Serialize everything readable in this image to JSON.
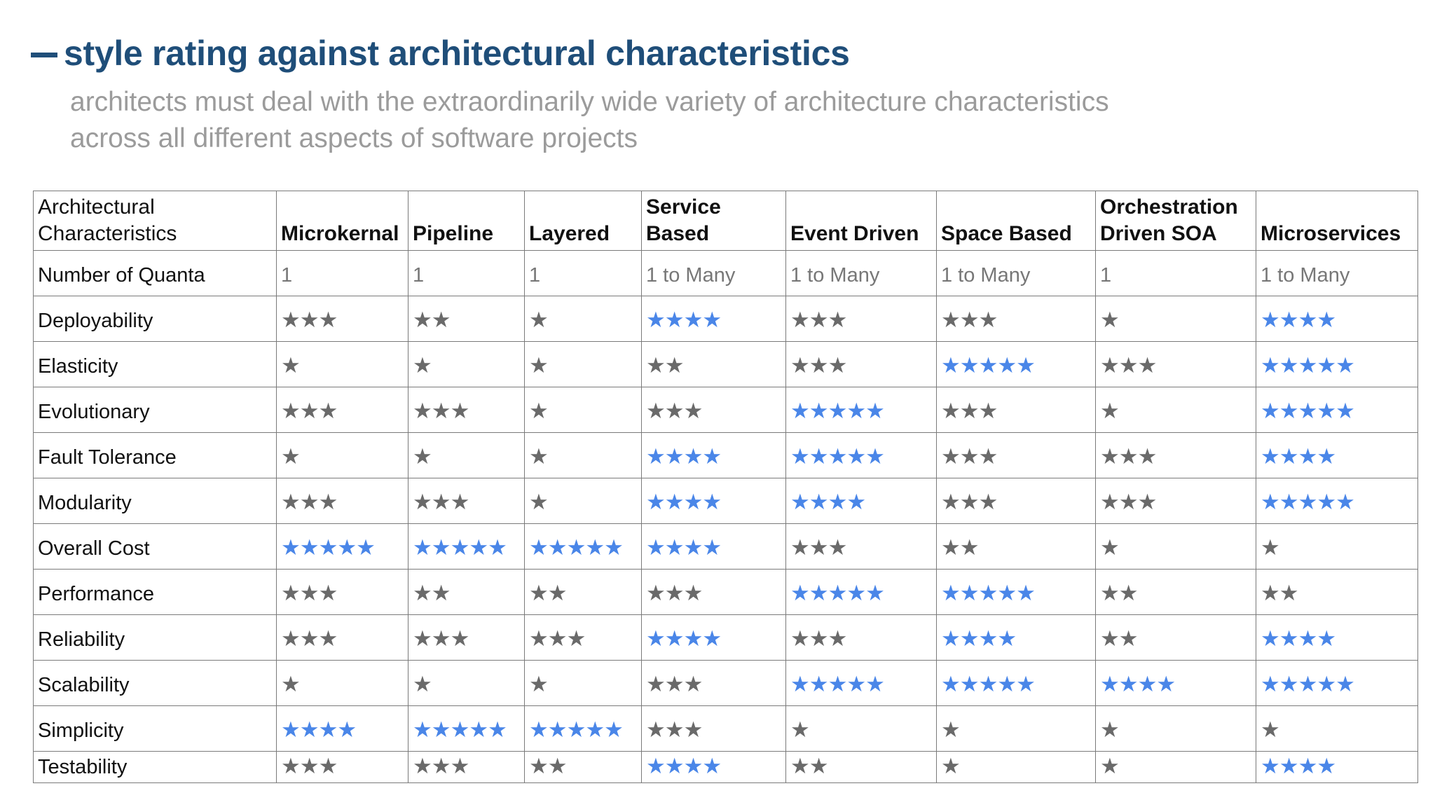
{
  "header": {
    "title": "style rating against architectural characteristics",
    "subtitle": "architects must deal with the extraordinarily wide variety of architecture characteristics across all different aspects of software projects"
  },
  "colors": {
    "highlight": "#4a86e8",
    "normal": "#6a6a6a"
  },
  "table": {
    "corner": "Architectural Characteristics",
    "columns": [
      "Microkernal",
      "Pipeline",
      "Layered",
      "Service Based",
      "Event Driven",
      "Space Based",
      "Orchestration Driven SOA",
      "Microservices"
    ],
    "quanta_label": "Number of Quanta",
    "quanta": [
      "1",
      "1",
      "1",
      "1 to Many",
      "1 to Many",
      "1 to Many",
      "1",
      "1 to Many"
    ],
    "rows": [
      {
        "label": "Deployability",
        "ratings": [
          3,
          2,
          1,
          4,
          3,
          3,
          1,
          4
        ]
      },
      {
        "label": "Elasticity",
        "ratings": [
          1,
          1,
          1,
          2,
          3,
          5,
          3,
          5
        ]
      },
      {
        "label": "Evolutionary",
        "ratings": [
          3,
          3,
          1,
          3,
          5,
          3,
          1,
          5
        ]
      },
      {
        "label": "Fault Tolerance",
        "ratings": [
          1,
          1,
          1,
          4,
          5,
          3,
          3,
          4
        ]
      },
      {
        "label": "Modularity",
        "ratings": [
          3,
          3,
          1,
          4,
          4,
          3,
          3,
          5
        ]
      },
      {
        "label": "Overall Cost",
        "ratings": [
          5,
          5,
          5,
          4,
          3,
          2,
          1,
          1
        ]
      },
      {
        "label": "Performance",
        "ratings": [
          3,
          2,
          2,
          3,
          5,
          5,
          2,
          2
        ]
      },
      {
        "label": "Reliability",
        "ratings": [
          3,
          3,
          3,
          4,
          3,
          4,
          2,
          4
        ]
      },
      {
        "label": "Scalability",
        "ratings": [
          1,
          1,
          1,
          3,
          5,
          5,
          4,
          5
        ]
      },
      {
        "label": "Simplicity",
        "ratings": [
          4,
          5,
          5,
          3,
          1,
          1,
          1,
          1
        ]
      },
      {
        "label": "Testability",
        "ratings": [
          3,
          3,
          2,
          4,
          2,
          1,
          1,
          4
        ]
      }
    ]
  }
}
